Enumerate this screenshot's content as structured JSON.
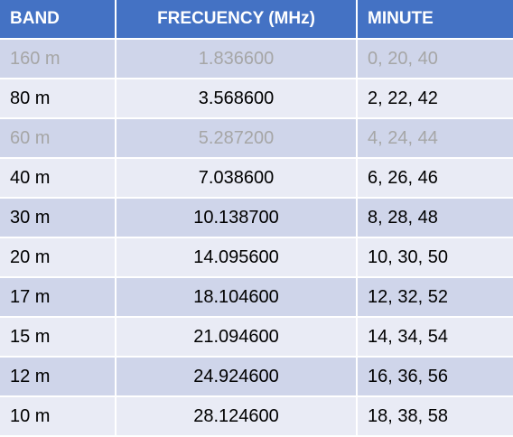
{
  "table": {
    "headers": [
      "BAND",
      "FRECUENCY (MHz)",
      "MINUTE"
    ],
    "rows": [
      {
        "band": "160 m",
        "frequency": "1.836600",
        "minute": "0, 20, 40",
        "muted": true
      },
      {
        "band": "80 m",
        "frequency": "3.568600",
        "minute": "2, 22, 42",
        "muted": false
      },
      {
        "band": "60 m",
        "frequency": "5.287200",
        "minute": "4, 24, 44",
        "muted": true
      },
      {
        "band": "40 m",
        "frequency": "7.038600",
        "minute": "6, 26, 46",
        "muted": false
      },
      {
        "band": "30 m",
        "frequency": "10.138700",
        "minute": "8, 28, 48",
        "muted": false
      },
      {
        "band": "20 m",
        "frequency": "14.095600",
        "minute": "10, 30, 50",
        "muted": false
      },
      {
        "band": "17 m",
        "frequency": "18.104600",
        "minute": "12, 32, 52",
        "muted": false
      },
      {
        "band": "15 m",
        "frequency": "21.094600",
        "minute": "14, 34, 54",
        "muted": false
      },
      {
        "band": "12 m",
        "frequency": "24.924600",
        "minute": "16, 36, 56",
        "muted": false
      },
      {
        "band": "10 m",
        "frequency": "28.124600",
        "minute": "18, 38, 58",
        "muted": false
      }
    ]
  },
  "colors": {
    "header_bg": "#4472c4",
    "row_odd_bg": "#cfd5ea",
    "row_even_bg": "#e9ebf5",
    "muted_text": "#a6a6a6"
  }
}
